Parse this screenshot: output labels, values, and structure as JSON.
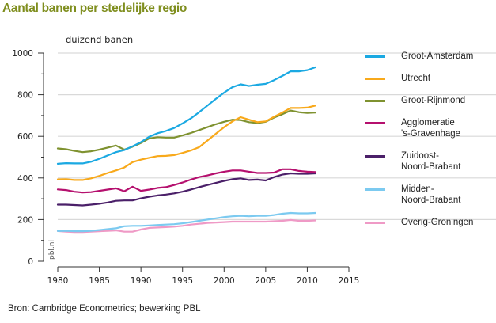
{
  "chart_data": {
    "type": "line",
    "title": "Aantal banen per stedelijke regio",
    "ylabel": "duizend banen",
    "xlabel": "",
    "ylim": [
      0,
      1000
    ],
    "xlim": [
      1980,
      2015
    ],
    "yticks": [
      0,
      200,
      400,
      600,
      800,
      1000
    ],
    "ytick_labels": [
      "0",
      "200",
      "400",
      "600",
      "800",
      "1000"
    ],
    "xticks": [
      1980,
      1985,
      1990,
      1995,
      2000,
      2005,
      2010,
      2015
    ],
    "xtick_labels": [
      "1980",
      "1985",
      "1990",
      "1995",
      "2000",
      "2005",
      "2010",
      "2015"
    ],
    "grid": "horizontal",
    "legend": "right",
    "watermark": "pbl.nl",
    "x": [
      1980,
      1981,
      1982,
      1983,
      1984,
      1985,
      1986,
      1987,
      1988,
      1989,
      1990,
      1991,
      1992,
      1993,
      1994,
      1995,
      1996,
      1997,
      1998,
      1999,
      2000,
      2001,
      2002,
      2003,
      2004,
      2005,
      2006,
      2007,
      2008,
      2009,
      2010,
      2011
    ],
    "series": [
      {
        "name": "Groot-Amsterdam",
        "color": "#1ba9e2",
        "values": [
          468,
          471,
          470,
          470,
          478,
          492,
          508,
          524,
          534,
          552,
          572,
          598,
          615,
          626,
          640,
          662,
          686,
          716,
          748,
          780,
          810,
          836,
          850,
          842,
          848,
          852,
          870,
          890,
          912,
          912,
          918,
          932
        ]
      },
      {
        "name": "Utrecht",
        "color": "#f8a91b",
        "values": [
          393,
          394,
          390,
          390,
          398,
          410,
          424,
          436,
          450,
          476,
          488,
          497,
          505,
          506,
          510,
          520,
          532,
          548,
          580,
          612,
          644,
          672,
          692,
          680,
          668,
          672,
          694,
          714,
          736,
          736,
          738,
          748
        ]
      },
      {
        "name": "Groot-Rijnmond",
        "color": "#7f9230",
        "values": [
          542,
          538,
          530,
          524,
          528,
          536,
          546,
          556,
          536,
          550,
          568,
          590,
          596,
          594,
          594,
          604,
          616,
          630,
          644,
          658,
          670,
          680,
          678,
          668,
          664,
          670,
          690,
          706,
          724,
          716,
          712,
          714
        ]
      },
      {
        "name": "Agglomeratie\n's-Gravenhage",
        "color": "#b5106e",
        "values": [
          345,
          342,
          334,
          330,
          332,
          338,
          344,
          350,
          336,
          358,
          338,
          344,
          352,
          356,
          366,
          378,
          392,
          404,
          412,
          422,
          430,
          436,
          436,
          430,
          424,
          424,
          426,
          442,
          442,
          434,
          430,
          428
        ]
      },
      {
        "name": "Zuidoost-\nNoord-Brabant",
        "color": "#4b2069",
        "values": [
          272,
          272,
          270,
          268,
          272,
          276,
          282,
          290,
          292,
          292,
          302,
          310,
          316,
          320,
          326,
          334,
          344,
          356,
          366,
          376,
          386,
          394,
          398,
          390,
          392,
          388,
          404,
          416,
          422,
          420,
          420,
          422
        ]
      },
      {
        "name": "Midden-\nNoord-Brabant",
        "color": "#7ccaf0",
        "values": [
          145,
          146,
          144,
          144,
          146,
          150,
          154,
          158,
          168,
          170,
          170,
          172,
          174,
          176,
          178,
          182,
          188,
          194,
          200,
          206,
          212,
          216,
          218,
          216,
          218,
          218,
          222,
          228,
          232,
          230,
          230,
          232
        ]
      },
      {
        "name": "Overig-Groningen",
        "color": "#ef9ac6",
        "values": [
          145,
          142,
          140,
          140,
          142,
          144,
          146,
          148,
          142,
          142,
          152,
          160,
          162,
          164,
          166,
          170,
          176,
          180,
          184,
          186,
          188,
          190,
          190,
          190,
          190,
          190,
          192,
          194,
          198,
          194,
          194,
          196
        ]
      }
    ]
  },
  "footer": {
    "source": "Bron: Cambridge Econometrics; bewerking PBL"
  }
}
